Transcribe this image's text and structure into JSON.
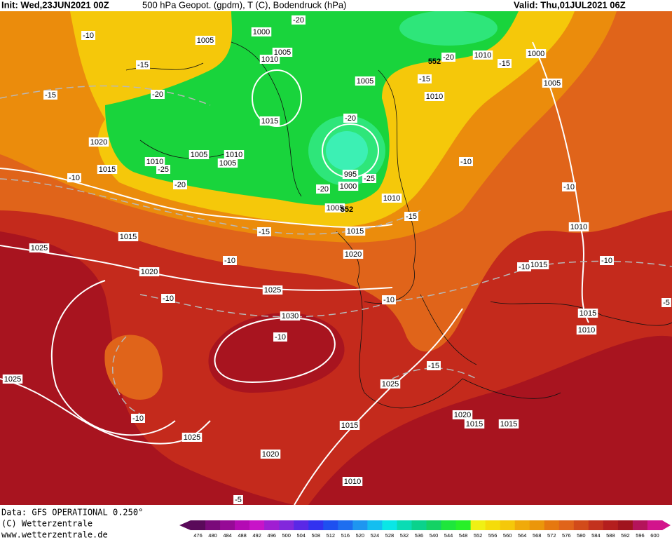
{
  "header": {
    "init": "Init: Wed,23JUN2021 00Z",
    "title": "500 hPa Geopot. (gpdm), T (C), Bodendruck (hPa)",
    "valid": "Valid: Thu,01JUL2021 06Z"
  },
  "footer": {
    "data": "Data: GFS OPERATIONAL 0.250°",
    "copyright": "(C) Wetterzentrale",
    "url": "www.wetterzentrale.de"
  },
  "pressure_labels": [
    1000,
    1005,
    1005,
    1010,
    1005,
    1010,
    1010,
    1000,
    1005,
    1015,
    1020,
    1015,
    1005,
    1010,
    1005,
    1010,
    995,
    1000,
    1005,
    1010,
    1015,
    1015,
    1025,
    1020,
    1020,
    1025,
    1030,
    1010,
    1015,
    1015,
    1010,
    1025,
    1025,
    1015,
    1020,
    1015,
    1015,
    1025,
    1020,
    1010
  ],
  "temperature_labels": [
    -20,
    -10,
    -15,
    -20,
    -15,
    -15,
    -15,
    -20,
    -20,
    -25,
    -20,
    -25,
    -20,
    -10,
    -10,
    -15,
    -15,
    -10,
    -10,
    -10,
    -10,
    -10,
    -10,
    -10,
    -15,
    -10,
    -5,
    -5
  ],
  "geopotential_labels": [
    552,
    552
  ],
  "colorbar": {
    "values": [
      476,
      480,
      484,
      488,
      492,
      496,
      500,
      504,
      508,
      512,
      516,
      520,
      524,
      528,
      532,
      536,
      540,
      544,
      548,
      552,
      556,
      560,
      564,
      568,
      572,
      576,
      580,
      584,
      588,
      592,
      596,
      600
    ],
    "colors": [
      "#5a0a5a",
      "#7a0a7a",
      "#960a96",
      "#b40ab4",
      "#c814c8",
      "#a01ed2",
      "#8228dc",
      "#5a28e6",
      "#3232f0",
      "#1e50f0",
      "#1e6ef0",
      "#1e96f0",
      "#14bef0",
      "#0ae6e6",
      "#0adcb4",
      "#0ad28c",
      "#14d264",
      "#1ee63c",
      "#28f028",
      "#f0f014",
      "#f5dc0a",
      "#f5c80a",
      "#f0aa0a",
      "#eb960a",
      "#e6780f",
      "#e0641a",
      "#d24b1a",
      "#c3321e",
      "#b41e1e",
      "#a0141e",
      "#b4145a",
      "#d2148c"
    ]
  }
}
